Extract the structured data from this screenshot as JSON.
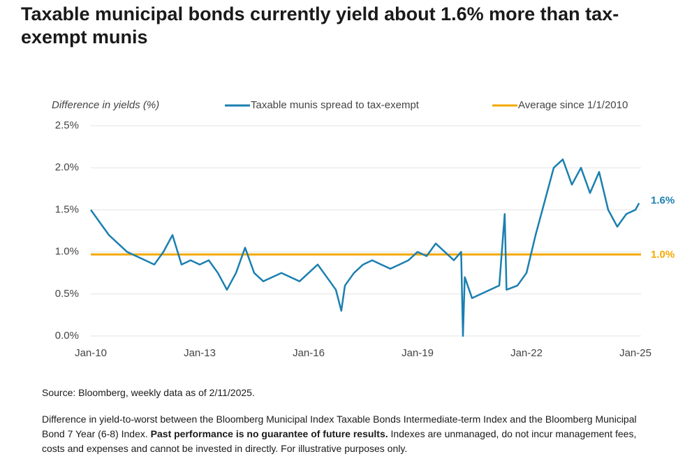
{
  "chart_data": {
    "type": "line",
    "title": "Taxable municipal bonds currently yield about 1.6% more than tax-exempt munis",
    "y_label": "Difference in yields (%)",
    "x": [
      2010.0,
      2010.25,
      2010.5,
      2010.75,
      2011.0,
      2011.25,
      2011.5,
      2011.75,
      2012.0,
      2012.25,
      2012.5,
      2012.75,
      2013.0,
      2013.25,
      2013.5,
      2013.75,
      2014.0,
      2014.25,
      2014.5,
      2014.75,
      2015.0,
      2015.25,
      2015.5,
      2015.75,
      2016.0,
      2016.25,
      2016.5,
      2016.75,
      2016.9,
      2017.0,
      2017.25,
      2017.5,
      2017.75,
      2018.0,
      2018.25,
      2018.5,
      2018.75,
      2019.0,
      2019.25,
      2019.5,
      2019.75,
      2020.0,
      2020.2,
      2020.25,
      2020.3,
      2020.5,
      2020.75,
      2021.0,
      2021.25,
      2021.4,
      2021.45,
      2021.75,
      2022.0,
      2022.25,
      2022.5,
      2022.75,
      2023.0,
      2023.25,
      2023.5,
      2023.75,
      2024.0,
      2024.25,
      2024.5,
      2024.75,
      2025.0,
      2025.1
    ],
    "series": [
      {
        "name": "Taxable munis spread to tax-exempt",
        "color": "#1b7fb0",
        "values": [
          1.5,
          1.35,
          1.2,
          1.1,
          1.0,
          0.95,
          0.9,
          0.85,
          1.0,
          1.2,
          0.85,
          0.9,
          0.85,
          0.9,
          0.75,
          0.55,
          0.75,
          1.05,
          0.75,
          0.65,
          0.7,
          0.75,
          0.7,
          0.65,
          0.75,
          0.85,
          0.7,
          0.55,
          0.3,
          0.6,
          0.75,
          0.85,
          0.9,
          0.85,
          0.8,
          0.85,
          0.9,
          1.0,
          0.95,
          1.1,
          1.0,
          0.9,
          1.0,
          0.0,
          0.7,
          0.45,
          0.5,
          0.55,
          0.6,
          1.45,
          0.55,
          0.6,
          0.75,
          1.2,
          1.6,
          2.0,
          2.1,
          1.8,
          2.0,
          1.7,
          1.95,
          1.5,
          1.3,
          1.45,
          1.5,
          1.58
        ],
        "end_label": "1.6%"
      }
    ],
    "reference_line": {
      "name": "Average since 1/1/2010",
      "color": "#f5a800",
      "value": 0.97,
      "label": "1.0%"
    },
    "xlim": [
      2010,
      2025
    ],
    "xticks": [
      {
        "value": 2010,
        "label": "Jan-10"
      },
      {
        "value": 2013,
        "label": "Jan-13"
      },
      {
        "value": 2016,
        "label": "Jan-16"
      },
      {
        "value": 2019,
        "label": "Jan-19"
      },
      {
        "value": 2022,
        "label": "Jan-22"
      },
      {
        "value": 2025,
        "label": "Jan-25"
      }
    ],
    "ylim": [
      0,
      2.5
    ],
    "yticks": [
      {
        "value": 0,
        "label": "0.0%"
      },
      {
        "value": 0.5,
        "label": "0.5%"
      },
      {
        "value": 1,
        "label": "1.0%"
      },
      {
        "value": 1.5,
        "label": "1.5%"
      },
      {
        "value": 2,
        "label": "2.0%"
      },
      {
        "value": 2.5,
        "label": "2.5%"
      }
    ],
    "grid": true,
    "source": "Source: Bloomberg, weekly data as of 2/11/2025.",
    "note": [
      "Difference in yield-to-worst between the Bloomberg Municipal Index Taxable Bonds Intermediate-term Index and the Bloomberg Municipal Bond 7 Year (6-8) Index. ",
      "Past performance is no guarantee of future results.",
      " Indexes are unmanaged, do not incur management fees, costs and expenses and cannot be invested in directly. For illustrative purposes only."
    ]
  }
}
